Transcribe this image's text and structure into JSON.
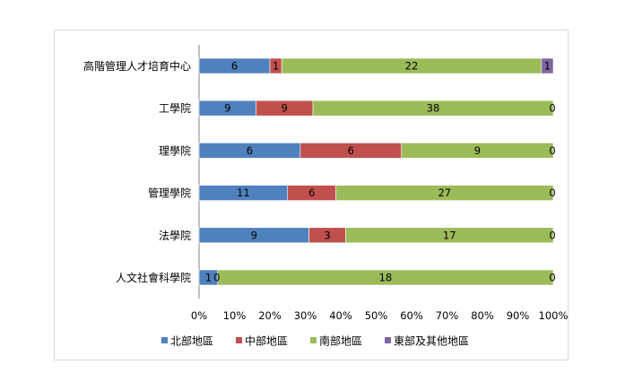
{
  "chart_data": {
    "type": "bar",
    "orientation": "horizontal",
    "stacking": "percent",
    "categories": [
      "高階管理人才培育中心",
      "工學院",
      "理學院",
      "管理學院",
      "法學院",
      "人文社會科學院"
    ],
    "series": [
      {
        "name": "北部地區",
        "color": "#4f81bd",
        "values": [
          6,
          9,
          6,
          11,
          9,
          1
        ]
      },
      {
        "name": "中部地區",
        "color": "#c0504d",
        "values": [
          1,
          9,
          6,
          6,
          3,
          0
        ]
      },
      {
        "name": "南部地區",
        "color": "#9bbb59",
        "values": [
          22,
          38,
          9,
          27,
          17,
          18
        ]
      },
      {
        "name": "東部及其他地區",
        "color": "#8064a2",
        "values": [
          1,
          0,
          0,
          0,
          0,
          0
        ]
      }
    ],
    "x_ticks": [
      "0%",
      "10%",
      "20%",
      "30%",
      "40%",
      "50%",
      "60%",
      "70%",
      "80%",
      "90%",
      "100%"
    ],
    "xlim": [
      0,
      100
    ],
    "grid": false,
    "legend_position": "bottom",
    "title": "",
    "xlabel": "",
    "ylabel": ""
  }
}
